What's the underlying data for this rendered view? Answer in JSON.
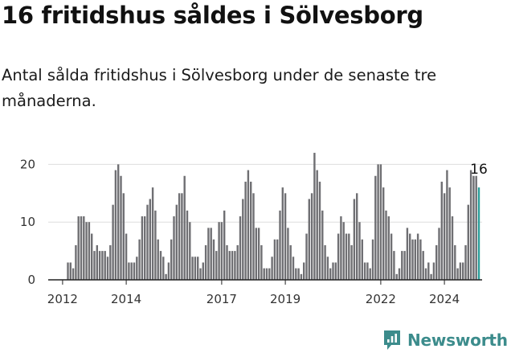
{
  "headline": "16 fritidshus såldes i Sölvesborg",
  "subtitle": "Antal sålda fritidshus i Sölvesborg under de senaste tre månaderna.",
  "brand": {
    "name": "Newsworthy",
    "icon": "newsworthy-logo-icon"
  },
  "colors": {
    "bar": "#6f6f73",
    "highlight": "#2a9d99",
    "grid": "#dddddd",
    "axis": "#222222",
    "brand": "#3c8c8c"
  },
  "chart_data": {
    "type": "bar",
    "title": "16 fritidshus såldes i Sölvesborg",
    "xlabel": "",
    "ylabel": "",
    "x_start": "2012-03",
    "x_unit": "month",
    "ylim": [
      0,
      22
    ],
    "yticks": [
      0,
      10,
      20
    ],
    "xticks": [
      {
        "label": "2012",
        "month": "2012-01"
      },
      {
        "label": "2014",
        "month": "2014-01"
      },
      {
        "label": "2017",
        "month": "2017-01"
      },
      {
        "label": "2019",
        "month": "2019-01"
      },
      {
        "label": "2022",
        "month": "2022-01"
      },
      {
        "label": "2024",
        "month": "2024-01"
      }
    ],
    "grid": "horizontal",
    "values": [
      3,
      3,
      2,
      6,
      11,
      11,
      11,
      10,
      10,
      8,
      5,
      6,
      5,
      5,
      5,
      4,
      6,
      13,
      19,
      20,
      18,
      15,
      8,
      3,
      3,
      3,
      4,
      7,
      11,
      11,
      13,
      14,
      16,
      12,
      7,
      5,
      4,
      1,
      3,
      7,
      11,
      13,
      15,
      15,
      18,
      12,
      10,
      4,
      4,
      4,
      2,
      3,
      6,
      9,
      9,
      7,
      5,
      10,
      10,
      12,
      6,
      5,
      5,
      5,
      6,
      11,
      14,
      17,
      19,
      17,
      15,
      9,
      9,
      6,
      2,
      2,
      2,
      4,
      7,
      7,
      12,
      16,
      15,
      9,
      6,
      4,
      2,
      2,
      1,
      3,
      8,
      14,
      15,
      22,
      19,
      17,
      12,
      6,
      4,
      2,
      3,
      3,
      8,
      11,
      10,
      8,
      8,
      6,
      14,
      15,
      10,
      7,
      3,
      3,
      2,
      7,
      18,
      20,
      20,
      16,
      12,
      11,
      8,
      5,
      1,
      2,
      5,
      5,
      9,
      8,
      7,
      7,
      8,
      7,
      5,
      2,
      3,
      1,
      3,
      6,
      9,
      17,
      15,
      19,
      16,
      11,
      6,
      2,
      3,
      3,
      6,
      13,
      19,
      18,
      18,
      16
    ],
    "highlight_last": true,
    "last_value_label": "16"
  }
}
